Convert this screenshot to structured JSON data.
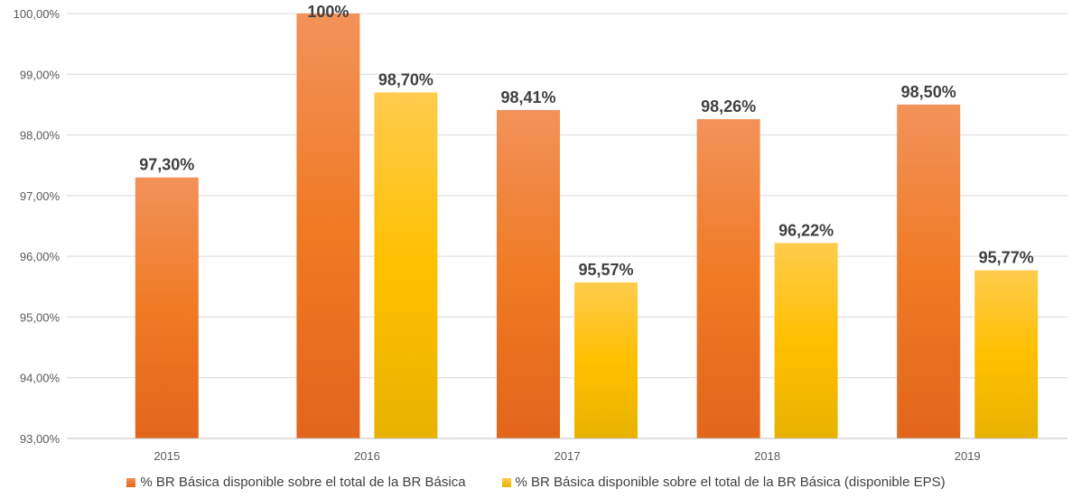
{
  "chart_data": {
    "type": "bar",
    "categories": [
      "2015",
      "2016",
      "2017",
      "2018",
      "2019"
    ],
    "series": [
      {
        "name": "% BR Básica disponible sobre el total de la BR Básica",
        "values": [
          97.3,
          100.0,
          98.41,
          98.26,
          98.5
        ],
        "labels": [
          "97,30%",
          "100%",
          "98,41%",
          "98,26%",
          "98,50%"
        ],
        "color": "#F07F2E"
      },
      {
        "name": "% BR Básica disponible sobre el total de la BR Básica (disponible EPS)",
        "values": [
          null,
          98.7,
          95.57,
          96.22,
          95.77
        ],
        "labels": [
          "",
          "98,70%",
          "95,57%",
          "96,22%",
          "95,77%"
        ],
        "color": "#FFC000"
      }
    ],
    "y_ticks": [
      93,
      94,
      95,
      96,
      97,
      98,
      99,
      100
    ],
    "y_tick_labels": [
      "93,00%",
      "94,00%",
      "95,00%",
      "96,00%",
      "97,00%",
      "98,00%",
      "99,00%",
      "100,00%"
    ],
    "ylim": [
      93,
      100
    ],
    "grid": true,
    "legend_position": "bottom"
  }
}
